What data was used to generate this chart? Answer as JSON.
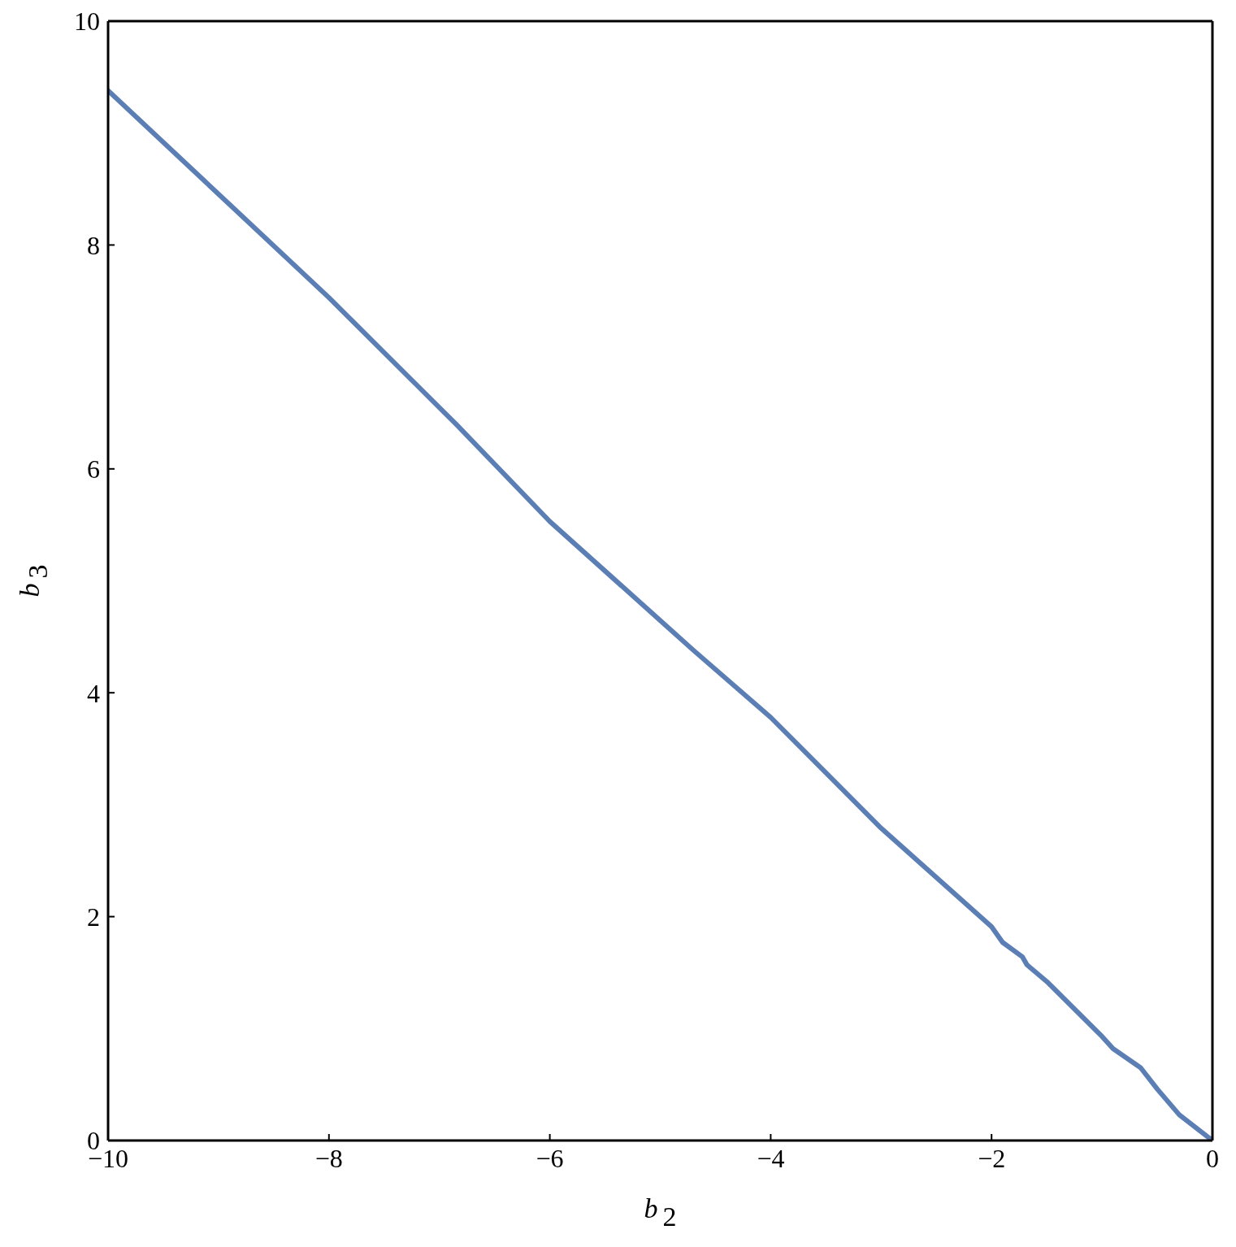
{
  "chart_data": {
    "type": "line",
    "xlabel": "b$_{2}$",
    "ylabel": "b$_{3}$",
    "x": [
      -10,
      -8,
      -6.85,
      -6,
      -4.7,
      -4,
      -3,
      -2,
      -1.9,
      -1.72,
      -1.68,
      -1.5,
      -1,
      -0.9,
      -0.65,
      -0.5,
      -0.3,
      0
    ],
    "series": [
      {
        "color": "#5b7fb5",
        "values": [
          9.38,
          7.53,
          6.4,
          5.53,
          4.38,
          3.78,
          2.79,
          1.91,
          1.77,
          1.64,
          1.57,
          1.42,
          0.93,
          0.82,
          0.65,
          0.46,
          0.23,
          0
        ]
      }
    ],
    "xlim": [
      -10,
      0
    ],
    "xticks": [
      {
        "value": -10,
        "label": "−10"
      },
      {
        "value": -8,
        "label": "−8"
      },
      {
        "value": -6,
        "label": "−6"
      },
      {
        "value": -4,
        "label": "−4"
      },
      {
        "value": -2,
        "label": "−2"
      },
      0
    ],
    "ylim": [
      0,
      10
    ],
    "yticks": [
      0,
      2,
      4,
      6,
      8,
      10
    ],
    "marker": "none",
    "line_style": "solid"
  }
}
